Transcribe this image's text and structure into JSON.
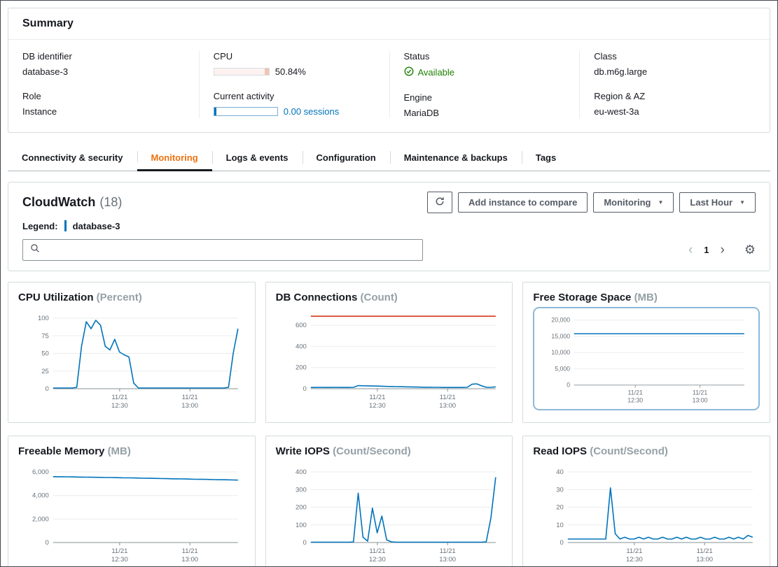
{
  "summary": {
    "title": "Summary",
    "db_identifier": {
      "label": "DB identifier",
      "value": "database-3"
    },
    "role": {
      "label": "Role",
      "value": "Instance"
    },
    "cpu": {
      "label": "CPU",
      "value": "50.84%",
      "percent": 50.84
    },
    "current_activity": {
      "label": "Current activity",
      "value": "0.00 sessions"
    },
    "status": {
      "label": "Status",
      "value": "Available"
    },
    "engine": {
      "label": "Engine",
      "value": "MariaDB"
    },
    "class": {
      "label": "Class",
      "value": "db.m6g.large"
    },
    "region_az": {
      "label": "Region & AZ",
      "value": "eu-west-3a"
    }
  },
  "tabs": [
    {
      "label": "Connectivity & security",
      "active": false
    },
    {
      "label": "Monitoring",
      "active": true
    },
    {
      "label": "Logs & events",
      "active": false
    },
    {
      "label": "Configuration",
      "active": false
    },
    {
      "label": "Maintenance & backups",
      "active": false
    },
    {
      "label": "Tags",
      "active": false
    }
  ],
  "cloudwatch": {
    "title": "CloudWatch",
    "count": "(18)",
    "legend_label": "Legend:",
    "legend_instance": "database-3",
    "add_instance_button": "Add instance to compare",
    "monitoring_dropdown": "Monitoring",
    "time_range_dropdown": "Last Hour",
    "page_number": "1"
  },
  "colors": {
    "line_blue": "#0073bb",
    "alarm_red": "#d13212",
    "active_tab_orange": "#ec7211",
    "status_green": "#1d8102"
  },
  "chart_data": [
    {
      "type": "line",
      "title": "CPU Utilization",
      "unit": "(Percent)",
      "ymax": 105,
      "yticks": [
        {
          "value": 0,
          "label": "0"
        },
        {
          "value": 25,
          "label": "25"
        },
        {
          "value": 50,
          "label": "50"
        },
        {
          "value": 75,
          "label": "75"
        },
        {
          "value": 100,
          "label": "100"
        }
      ],
      "xticks": [
        {
          "pos": 0.36,
          "label": [
            "11/21",
            "12:30"
          ]
        },
        {
          "pos": 0.74,
          "label": [
            "11/21",
            "13:00"
          ]
        }
      ],
      "series": [
        {
          "name": "database-3",
          "color": "#0073bb",
          "values": [
            1,
            1,
            1,
            1,
            1,
            2,
            60,
            95,
            85,
            97,
            90,
            60,
            55,
            70,
            52,
            48,
            45,
            8,
            1,
            1,
            1,
            1,
            1,
            1,
            1,
            1,
            1,
            1,
            1,
            1,
            1,
            1,
            1,
            1,
            1,
            1,
            1,
            2,
            50,
            85
          ]
        }
      ]
    },
    {
      "type": "line",
      "title": "DB Connections",
      "unit": "(Count)",
      "ymax": 700,
      "yticks": [
        {
          "value": 0,
          "label": "0"
        },
        {
          "value": 200,
          "label": "200"
        },
        {
          "value": 400,
          "label": "400"
        },
        {
          "value": 600,
          "label": "600"
        }
      ],
      "xticks": [
        {
          "pos": 0.36,
          "label": [
            "11/21",
            "12:30"
          ]
        },
        {
          "pos": 0.74,
          "label": [
            "11/21",
            "13:00"
          ]
        }
      ],
      "series": [
        {
          "name": "threshold",
          "color": "#d13212",
          "values": [
            685,
            685
          ]
        },
        {
          "name": "database-3",
          "color": "#0073bb",
          "values": [
            12,
            12,
            13,
            12,
            12,
            13,
            12,
            12,
            12,
            13,
            30,
            28,
            27,
            26,
            25,
            24,
            22,
            21,
            20,
            19,
            18,
            17,
            16,
            15,
            14,
            14,
            13,
            13,
            12,
            12,
            12,
            12,
            12,
            13,
            42,
            46,
            28,
            14,
            13,
            18
          ]
        }
      ]
    },
    {
      "type": "line",
      "title": "Free Storage Space",
      "unit": "(MB)",
      "ymax": 21000,
      "selected": true,
      "yticks": [
        {
          "value": 0,
          "label": "0"
        },
        {
          "value": 5000,
          "label": "5,000"
        },
        {
          "value": 10000,
          "label": "10,000"
        },
        {
          "value": 15000,
          "label": "15,000"
        },
        {
          "value": 20000,
          "label": "20,000"
        }
      ],
      "xticks": [
        {
          "pos": 0.36,
          "label": [
            "11/21",
            "12:30"
          ]
        },
        {
          "pos": 0.74,
          "label": [
            "11/21",
            "13:00"
          ]
        }
      ],
      "series": [
        {
          "name": "database-3",
          "color": "#0073bb",
          "values": [
            15800,
            15800
          ]
        }
      ]
    },
    {
      "type": "line",
      "title": "Freeable Memory",
      "unit": "(MB)",
      "ymax": 6300,
      "yticks": [
        {
          "value": 0,
          "label": "0"
        },
        {
          "value": 2000,
          "label": "2,000"
        },
        {
          "value": 4000,
          "label": "4,000"
        },
        {
          "value": 6000,
          "label": "6,000"
        }
      ],
      "xticks": [
        {
          "pos": 0.36,
          "label": [
            "11/21",
            "12:30"
          ]
        },
        {
          "pos": 0.74,
          "label": [
            "11/21",
            "13:00"
          ]
        }
      ],
      "series": [
        {
          "name": "database-3",
          "color": "#0073bb",
          "values": [
            5600,
            5595,
            5590,
            5585,
            5580,
            5570,
            5565,
            5560,
            5550,
            5545,
            5540,
            5530,
            5525,
            5520,
            5510,
            5500,
            5495,
            5490,
            5480,
            5470,
            5460,
            5455,
            5450,
            5440,
            5430,
            5420,
            5415,
            5410,
            5400,
            5390,
            5380,
            5375,
            5370,
            5360,
            5350,
            5340,
            5335,
            5330,
            5320,
            5310
          ]
        }
      ]
    },
    {
      "type": "line",
      "title": "Write IOPS",
      "unit": "(Count/Second)",
      "ymax": 420,
      "yticks": [
        {
          "value": 0,
          "label": "0"
        },
        {
          "value": 100,
          "label": "100"
        },
        {
          "value": 200,
          "label": "200"
        },
        {
          "value": 300,
          "label": "300"
        },
        {
          "value": 400,
          "label": "400"
        }
      ],
      "xticks": [
        {
          "pos": 0.36,
          "label": [
            "11/21",
            "12:30"
          ]
        },
        {
          "pos": 0.74,
          "label": [
            "11/21",
            "13:00"
          ]
        }
      ],
      "series": [
        {
          "name": "database-3",
          "color": "#0073bb",
          "values": [
            2,
            2,
            2,
            2,
            2,
            2,
            2,
            2,
            2,
            3,
            280,
            30,
            8,
            195,
            55,
            150,
            15,
            4,
            2,
            2,
            2,
            2,
            2,
            2,
            2,
            2,
            2,
            2,
            2,
            2,
            2,
            2,
            2,
            2,
            2,
            2,
            2,
            4,
            140,
            370
          ]
        }
      ]
    },
    {
      "type": "line",
      "title": "Read IOPS",
      "unit": "(Count/Second)",
      "ymax": 42,
      "yticks": [
        {
          "value": 0,
          "label": "0"
        },
        {
          "value": 10,
          "label": "10"
        },
        {
          "value": 20,
          "label": "20"
        },
        {
          "value": 30,
          "label": "30"
        },
        {
          "value": 40,
          "label": "40"
        }
      ],
      "xticks": [
        {
          "pos": 0.36,
          "label": [
            "11/21",
            "12:30"
          ]
        },
        {
          "pos": 0.74,
          "label": [
            "11/21",
            "13:00"
          ]
        }
      ],
      "series": [
        {
          "name": "database-3",
          "color": "#0073bb",
          "values": [
            2,
            2,
            2,
            2,
            2,
            2,
            2,
            2,
            2,
            31,
            5,
            2,
            3,
            2,
            2,
            3,
            2,
            3,
            2,
            2,
            3,
            2,
            2,
            3,
            2,
            3,
            2,
            2,
            3,
            2,
            2,
            3,
            2,
            2,
            3,
            2,
            3,
            2,
            4,
            3
          ]
        }
      ]
    }
  ]
}
